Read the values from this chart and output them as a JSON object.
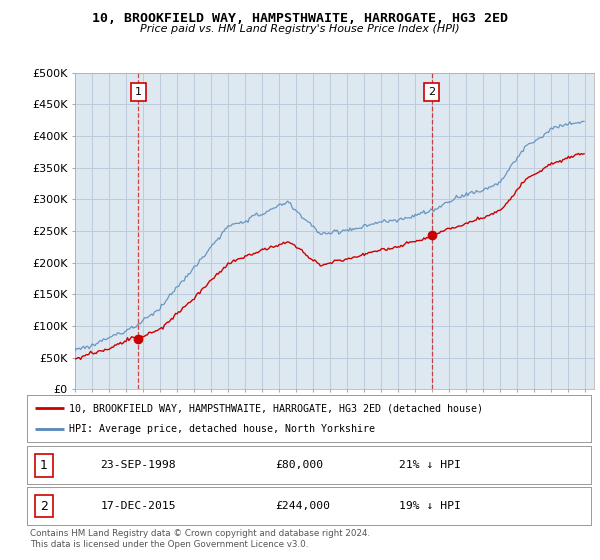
{
  "title": "10, BROOKFIELD WAY, HAMPSTHWAITE, HARROGATE, HG3 2ED",
  "subtitle": "Price paid vs. HM Land Registry's House Price Index (HPI)",
  "ylabel_ticks": [
    "£0",
    "£50K",
    "£100K",
    "£150K",
    "£200K",
    "£250K",
    "£300K",
    "£350K",
    "£400K",
    "£450K",
    "£500K"
  ],
  "ytick_values": [
    0,
    50000,
    100000,
    150000,
    200000,
    250000,
    300000,
    350000,
    400000,
    450000,
    500000
  ],
  "xlim_start": 1995.0,
  "xlim_end": 2025.5,
  "ylim": [
    0,
    500000
  ],
  "purchase1_x": 1998.73,
  "purchase1_y": 80000,
  "purchase2_x": 2015.96,
  "purchase2_y": 244000,
  "legend_line1": "10, BROOKFIELD WAY, HAMPSTHWAITE, HARROGATE, HG3 2ED (detached house)",
  "legend_line2": "HPI: Average price, detached house, North Yorkshire",
  "table_row1_num": "1",
  "table_row1_date": "23-SEP-1998",
  "table_row1_price": "£80,000",
  "table_row1_hpi": "21% ↓ HPI",
  "table_row2_num": "2",
  "table_row2_date": "17-DEC-2015",
  "table_row2_price": "£244,000",
  "table_row2_hpi": "19% ↓ HPI",
  "footer": "Contains HM Land Registry data © Crown copyright and database right 2024.\nThis data is licensed under the Open Government Licence v3.0.",
  "red_color": "#cc0000",
  "blue_color": "#5588bb",
  "bg_color": "#ffffff",
  "chart_bg": "#dde8f0",
  "grid_color": "#bbccdd"
}
